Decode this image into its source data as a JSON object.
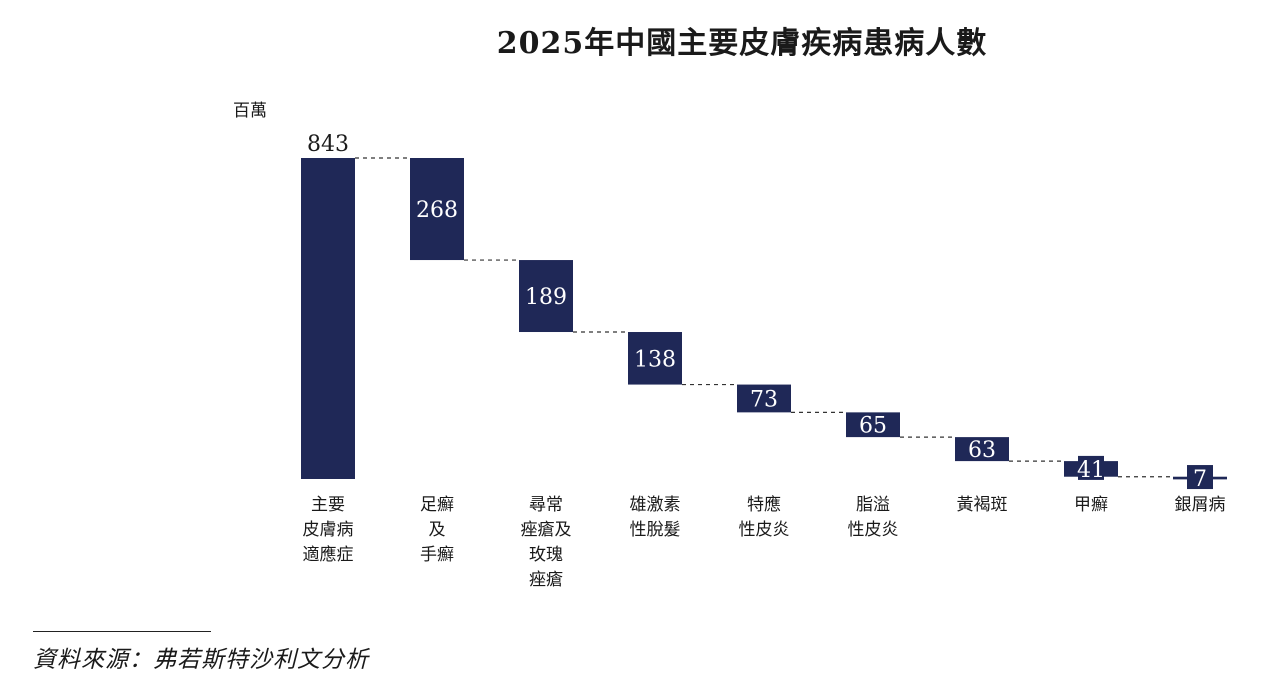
{
  "title": "2025年中國主要皮膚疾病患病人數",
  "unit_label": "百萬",
  "source": "資料來源：弗若斯特沙利文分析",
  "colors": {
    "bar": "#1f2857",
    "connector": "#333333",
    "label_dark": "#1a1a1a",
    "label_light": "#ffffff"
  },
  "chart_data": {
    "type": "waterfall",
    "title": "2025年中國主要皮膚疾病患病人數",
    "ylabel": "百萬",
    "ylim": [
      0,
      843
    ],
    "total": {
      "category": [
        "主要",
        "皮膚病",
        "適應症"
      ],
      "value": 843
    },
    "categories": [
      [
        "主要",
        "皮膚病",
        "適應症"
      ],
      [
        "足癬",
        "及",
        "手癬"
      ],
      [
        "尋常",
        "痤瘡及",
        "玫瑰",
        "痤瘡"
      ],
      [
        "雄激素",
        "性脫髮"
      ],
      [
        "特應",
        "性皮炎"
      ],
      [
        "脂溢",
        "性皮炎"
      ],
      [
        "黃褐斑"
      ],
      [
        "甲癬"
      ],
      [
        "銀屑病"
      ]
    ],
    "values": [
      843,
      268,
      189,
      138,
      73,
      65,
      63,
      41,
      7
    ],
    "value_labels": [
      "843",
      "268",
      "189",
      "138",
      "73",
      "65",
      "63",
      "41",
      "7"
    ],
    "connectors": true,
    "grid": false,
    "legend": "none"
  }
}
